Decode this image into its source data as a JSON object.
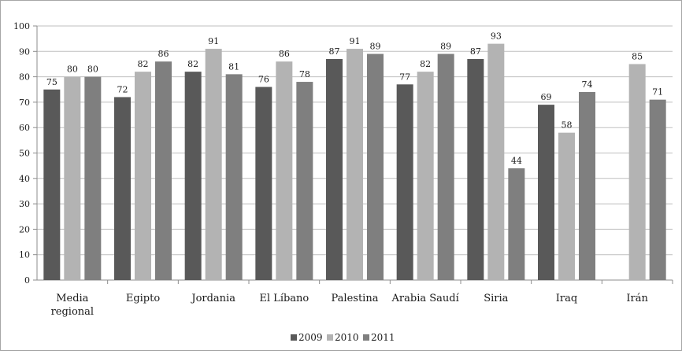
{
  "chart_data": {
    "type": "bar",
    "title": "",
    "xlabel": "",
    "ylabel": "",
    "ylim": [
      0,
      100
    ],
    "yticks": [
      0,
      10,
      20,
      30,
      40,
      50,
      60,
      70,
      80,
      90,
      100
    ],
    "ytick_labels": [
      "0",
      "10",
      "20",
      "30",
      "40",
      "50",
      "60",
      "70",
      "80",
      "90",
      "100"
    ],
    "grid": "horizontal",
    "legend_position": "bottom",
    "categories": [
      [
        "Media",
        "regional"
      ],
      [
        "Egipto"
      ],
      [
        "Jordania"
      ],
      [
        "El Líbano"
      ],
      [
        "Palestina"
      ],
      [
        "Arabia Saudí"
      ],
      [
        "Siria"
      ],
      [
        "Iraq"
      ],
      [
        "Irán"
      ]
    ],
    "series": [
      {
        "name": "2009",
        "color": "#595959",
        "values": [
          75,
          72,
          82,
          76,
          87,
          77,
          87,
          69,
          null
        ]
      },
      {
        "name": "2010",
        "color": "#b3b3b3",
        "values": [
          80,
          82,
          91,
          86,
          91,
          82,
          93,
          58,
          85
        ]
      },
      {
        "name": "2011",
        "color": "#7f7f7f",
        "values": [
          80,
          86,
          81,
          78,
          89,
          89,
          44,
          74,
          71
        ]
      }
    ]
  }
}
